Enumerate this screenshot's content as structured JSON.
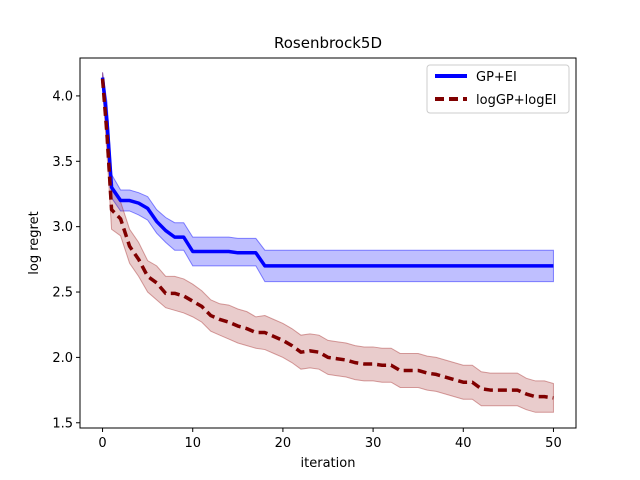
{
  "chart_data": {
    "type": "line",
    "title": "Rosenbrock5D",
    "xlabel": "iteration",
    "ylabel": "log regret",
    "xlim": [
      -2.5,
      52.5
    ],
    "ylim": [
      1.46,
      4.29
    ],
    "xticks": [
      0,
      10,
      20,
      30,
      40,
      50
    ],
    "yticks": [
      1.5,
      2.0,
      2.5,
      3.0,
      3.5,
      4.0
    ],
    "grid": false,
    "legend_position": "top-right",
    "series": [
      {
        "name": "GP+EI",
        "color": "#0000ff",
        "band_color": "#0000ff",
        "line_style": "solid",
        "x": [
          0,
          0.5,
          1,
          2,
          3,
          4,
          5,
          6,
          7,
          8,
          9,
          10,
          11,
          12,
          13,
          14,
          15,
          16,
          17,
          18,
          19,
          20,
          25,
          30,
          35,
          40,
          45,
          50
        ],
        "y": [
          4.14,
          3.8,
          3.3,
          3.2,
          3.2,
          3.18,
          3.14,
          3.04,
          2.97,
          2.92,
          2.92,
          2.81,
          2.81,
          2.81,
          2.81,
          2.81,
          2.8,
          2.8,
          2.8,
          2.7,
          2.7,
          2.7,
          2.7,
          2.7,
          2.7,
          2.7,
          2.7,
          2.7
        ],
        "lower": [
          4.1,
          3.65,
          3.22,
          3.12,
          3.12,
          3.09,
          3.05,
          2.95,
          2.88,
          2.82,
          2.82,
          2.7,
          2.7,
          2.7,
          2.7,
          2.7,
          2.7,
          2.7,
          2.7,
          2.58,
          2.58,
          2.58,
          2.58,
          2.58,
          2.58,
          2.58,
          2.58,
          2.58
        ],
        "upper": [
          4.18,
          3.95,
          3.4,
          3.28,
          3.28,
          3.26,
          3.23,
          3.13,
          3.07,
          3.03,
          3.03,
          2.92,
          2.92,
          2.92,
          2.92,
          2.92,
          2.91,
          2.91,
          2.91,
          2.82,
          2.82,
          2.82,
          2.82,
          2.82,
          2.82,
          2.82,
          2.82,
          2.82
        ]
      },
      {
        "name": "logGP+logEI",
        "color": "#800000",
        "band_color": "#a83232",
        "line_style": "dashed",
        "x": [
          0,
          0.5,
          1,
          2,
          3,
          4,
          5,
          6,
          7,
          8,
          9,
          10,
          11,
          12,
          13,
          14,
          15,
          16,
          17,
          18,
          19,
          20,
          21,
          22,
          23,
          24,
          25,
          26,
          27,
          28,
          29,
          30,
          31,
          32,
          33,
          34,
          35,
          36,
          37,
          38,
          39,
          40,
          41,
          42,
          43,
          44,
          45,
          46,
          47,
          48,
          49,
          50
        ],
        "y": [
          4.13,
          3.7,
          3.13,
          3.06,
          2.85,
          2.75,
          2.62,
          2.57,
          2.49,
          2.49,
          2.47,
          2.43,
          2.39,
          2.32,
          2.29,
          2.27,
          2.24,
          2.22,
          2.19,
          2.19,
          2.16,
          2.13,
          2.09,
          2.04,
          2.05,
          2.04,
          2.0,
          1.99,
          1.98,
          1.96,
          1.95,
          1.95,
          1.94,
          1.94,
          1.9,
          1.9,
          1.9,
          1.88,
          1.87,
          1.85,
          1.83,
          1.81,
          1.81,
          1.76,
          1.75,
          1.75,
          1.75,
          1.75,
          1.72,
          1.7,
          1.7,
          1.69
        ],
        "lower": [
          4.08,
          3.55,
          2.98,
          2.93,
          2.72,
          2.62,
          2.5,
          2.44,
          2.38,
          2.36,
          2.34,
          2.31,
          2.27,
          2.2,
          2.17,
          2.14,
          2.11,
          2.09,
          2.07,
          2.06,
          2.03,
          2.0,
          1.96,
          1.91,
          1.92,
          1.91,
          1.87,
          1.86,
          1.85,
          1.83,
          1.82,
          1.82,
          1.81,
          1.81,
          1.77,
          1.77,
          1.77,
          1.75,
          1.74,
          1.72,
          1.7,
          1.68,
          1.68,
          1.63,
          1.63,
          1.63,
          1.63,
          1.63,
          1.6,
          1.58,
          1.58,
          1.58
        ],
        "upper": [
          4.18,
          3.85,
          3.28,
          3.19,
          2.98,
          2.88,
          2.74,
          2.7,
          2.62,
          2.62,
          2.6,
          2.56,
          2.51,
          2.44,
          2.41,
          2.4,
          2.37,
          2.35,
          2.31,
          2.32,
          2.29,
          2.26,
          2.22,
          2.17,
          2.18,
          2.17,
          2.13,
          2.12,
          2.11,
          2.09,
          2.08,
          2.08,
          2.07,
          2.07,
          2.03,
          2.03,
          2.03,
          2.01,
          2.0,
          1.98,
          1.96,
          1.94,
          1.94,
          1.89,
          1.88,
          1.88,
          1.88,
          1.88,
          1.84,
          1.82,
          1.82,
          1.8
        ]
      }
    ]
  }
}
